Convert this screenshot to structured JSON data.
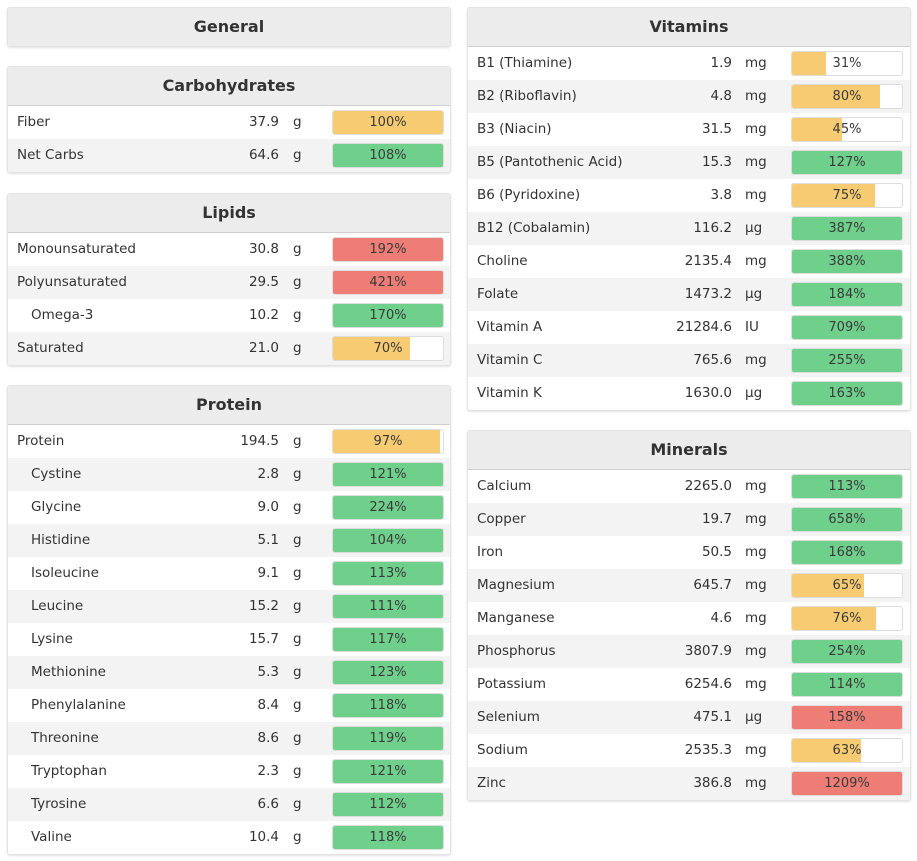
{
  "colors": {
    "green": "#6fd08c",
    "orange": "#f6cb72",
    "red": "#ee7d76",
    "header_bg": "#ececec",
    "alt_row": "#f3f3f3"
  },
  "general": {
    "title": "General"
  },
  "sections": {
    "carbohydrates": {
      "title": "Carbohydrates",
      "rows": [
        {
          "name": "Fiber",
          "amount": "37.9",
          "unit": "g",
          "pct_label": "100%",
          "fill": 1.0,
          "status": "orange",
          "indent": false
        },
        {
          "name": "Net Carbs",
          "amount": "64.6",
          "unit": "g",
          "pct_label": "108%",
          "fill": 1.0,
          "status": "green",
          "indent": false
        }
      ]
    },
    "lipids": {
      "title": "Lipids",
      "rows": [
        {
          "name": "Monounsaturated",
          "amount": "30.8",
          "unit": "g",
          "pct_label": "192%",
          "fill": 1.0,
          "status": "red",
          "indent": false
        },
        {
          "name": "Polyunsaturated",
          "amount": "29.5",
          "unit": "g",
          "pct_label": "421%",
          "fill": 1.0,
          "status": "red",
          "indent": false
        },
        {
          "name": "Omega-3",
          "amount": "10.2",
          "unit": "g",
          "pct_label": "170%",
          "fill": 1.0,
          "status": "green",
          "indent": true
        },
        {
          "name": "Saturated",
          "amount": "21.0",
          "unit": "g",
          "pct_label": "70%",
          "fill": 0.7,
          "status": "orange",
          "indent": false
        }
      ]
    },
    "protein": {
      "title": "Protein",
      "rows": [
        {
          "name": "Protein",
          "amount": "194.5",
          "unit": "g",
          "pct_label": "97%",
          "fill": 0.97,
          "status": "orange",
          "indent": false
        },
        {
          "name": "Cystine",
          "amount": "2.8",
          "unit": "g",
          "pct_label": "121%",
          "fill": 1.0,
          "status": "green",
          "indent": true
        },
        {
          "name": "Glycine",
          "amount": "9.0",
          "unit": "g",
          "pct_label": "224%",
          "fill": 1.0,
          "status": "green",
          "indent": true
        },
        {
          "name": "Histidine",
          "amount": "5.1",
          "unit": "g",
          "pct_label": "104%",
          "fill": 1.0,
          "status": "green",
          "indent": true
        },
        {
          "name": "Isoleucine",
          "amount": "9.1",
          "unit": "g",
          "pct_label": "113%",
          "fill": 1.0,
          "status": "green",
          "indent": true
        },
        {
          "name": "Leucine",
          "amount": "15.2",
          "unit": "g",
          "pct_label": "111%",
          "fill": 1.0,
          "status": "green",
          "indent": true
        },
        {
          "name": "Lysine",
          "amount": "15.7",
          "unit": "g",
          "pct_label": "117%",
          "fill": 1.0,
          "status": "green",
          "indent": true
        },
        {
          "name": "Methionine",
          "amount": "5.3",
          "unit": "g",
          "pct_label": "123%",
          "fill": 1.0,
          "status": "green",
          "indent": true
        },
        {
          "name": "Phenylalanine",
          "amount": "8.4",
          "unit": "g",
          "pct_label": "118%",
          "fill": 1.0,
          "status": "green",
          "indent": true
        },
        {
          "name": "Threonine",
          "amount": "8.6",
          "unit": "g",
          "pct_label": "119%",
          "fill": 1.0,
          "status": "green",
          "indent": true
        },
        {
          "name": "Tryptophan",
          "amount": "2.3",
          "unit": "g",
          "pct_label": "121%",
          "fill": 1.0,
          "status": "green",
          "indent": true
        },
        {
          "name": "Tyrosine",
          "amount": "6.6",
          "unit": "g",
          "pct_label": "112%",
          "fill": 1.0,
          "status": "green",
          "indent": true
        },
        {
          "name": "Valine",
          "amount": "10.4",
          "unit": "g",
          "pct_label": "118%",
          "fill": 1.0,
          "status": "green",
          "indent": true
        }
      ]
    },
    "vitamins": {
      "title": "Vitamins",
      "rows": [
        {
          "name": "B1 (Thiamine)",
          "amount": "1.9",
          "unit": "mg",
          "pct_label": "31%",
          "fill": 0.31,
          "status": "orange",
          "indent": false
        },
        {
          "name": "B2 (Riboflavin)",
          "amount": "4.8",
          "unit": "mg",
          "pct_label": "80%",
          "fill": 0.8,
          "status": "orange",
          "indent": false
        },
        {
          "name": "B3 (Niacin)",
          "amount": "31.5",
          "unit": "mg",
          "pct_label": "45%",
          "fill": 0.45,
          "status": "orange",
          "indent": false
        },
        {
          "name": "B5 (Pantothenic Acid)",
          "amount": "15.3",
          "unit": "mg",
          "pct_label": "127%",
          "fill": 1.0,
          "status": "green",
          "indent": false
        },
        {
          "name": "B6 (Pyridoxine)",
          "amount": "3.8",
          "unit": "mg",
          "pct_label": "75%",
          "fill": 0.75,
          "status": "orange",
          "indent": false
        },
        {
          "name": "B12 (Cobalamin)",
          "amount": "116.2",
          "unit": "µg",
          "pct_label": "387%",
          "fill": 1.0,
          "status": "green",
          "indent": false
        },
        {
          "name": "Choline",
          "amount": "2135.4",
          "unit": "mg",
          "pct_label": "388%",
          "fill": 1.0,
          "status": "green",
          "indent": false
        },
        {
          "name": "Folate",
          "amount": "1473.2",
          "unit": "µg",
          "pct_label": "184%",
          "fill": 1.0,
          "status": "green",
          "indent": false
        },
        {
          "name": "Vitamin A",
          "amount": "21284.6",
          "unit": "IU",
          "pct_label": "709%",
          "fill": 1.0,
          "status": "green",
          "indent": false
        },
        {
          "name": "Vitamin C",
          "amount": "765.6",
          "unit": "mg",
          "pct_label": "255%",
          "fill": 1.0,
          "status": "green",
          "indent": false
        },
        {
          "name": "Vitamin K",
          "amount": "1630.0",
          "unit": "µg",
          "pct_label": "163%",
          "fill": 1.0,
          "status": "green",
          "indent": false
        }
      ]
    },
    "minerals": {
      "title": "Minerals",
      "rows": [
        {
          "name": "Calcium",
          "amount": "2265.0",
          "unit": "mg",
          "pct_label": "113%",
          "fill": 1.0,
          "status": "green",
          "indent": false
        },
        {
          "name": "Copper",
          "amount": "19.7",
          "unit": "mg",
          "pct_label": "658%",
          "fill": 1.0,
          "status": "green",
          "indent": false
        },
        {
          "name": "Iron",
          "amount": "50.5",
          "unit": "mg",
          "pct_label": "168%",
          "fill": 1.0,
          "status": "green",
          "indent": false
        },
        {
          "name": "Magnesium",
          "amount": "645.7",
          "unit": "mg",
          "pct_label": "65%",
          "fill": 0.65,
          "status": "orange",
          "indent": false
        },
        {
          "name": "Manganese",
          "amount": "4.6",
          "unit": "mg",
          "pct_label": "76%",
          "fill": 0.76,
          "status": "orange",
          "indent": false
        },
        {
          "name": "Phosphorus",
          "amount": "3807.9",
          "unit": "mg",
          "pct_label": "254%",
          "fill": 1.0,
          "status": "green",
          "indent": false
        },
        {
          "name": "Potassium",
          "amount": "6254.6",
          "unit": "mg",
          "pct_label": "114%",
          "fill": 1.0,
          "status": "green",
          "indent": false
        },
        {
          "name": "Selenium",
          "amount": "475.1",
          "unit": "µg",
          "pct_label": "158%",
          "fill": 1.0,
          "status": "red",
          "indent": false
        },
        {
          "name": "Sodium",
          "amount": "2535.3",
          "unit": "mg",
          "pct_label": "63%",
          "fill": 0.63,
          "status": "orange",
          "indent": false
        },
        {
          "name": "Zinc",
          "amount": "386.8",
          "unit": "mg",
          "pct_label": "1209%",
          "fill": 1.0,
          "status": "red",
          "indent": false
        }
      ]
    }
  }
}
